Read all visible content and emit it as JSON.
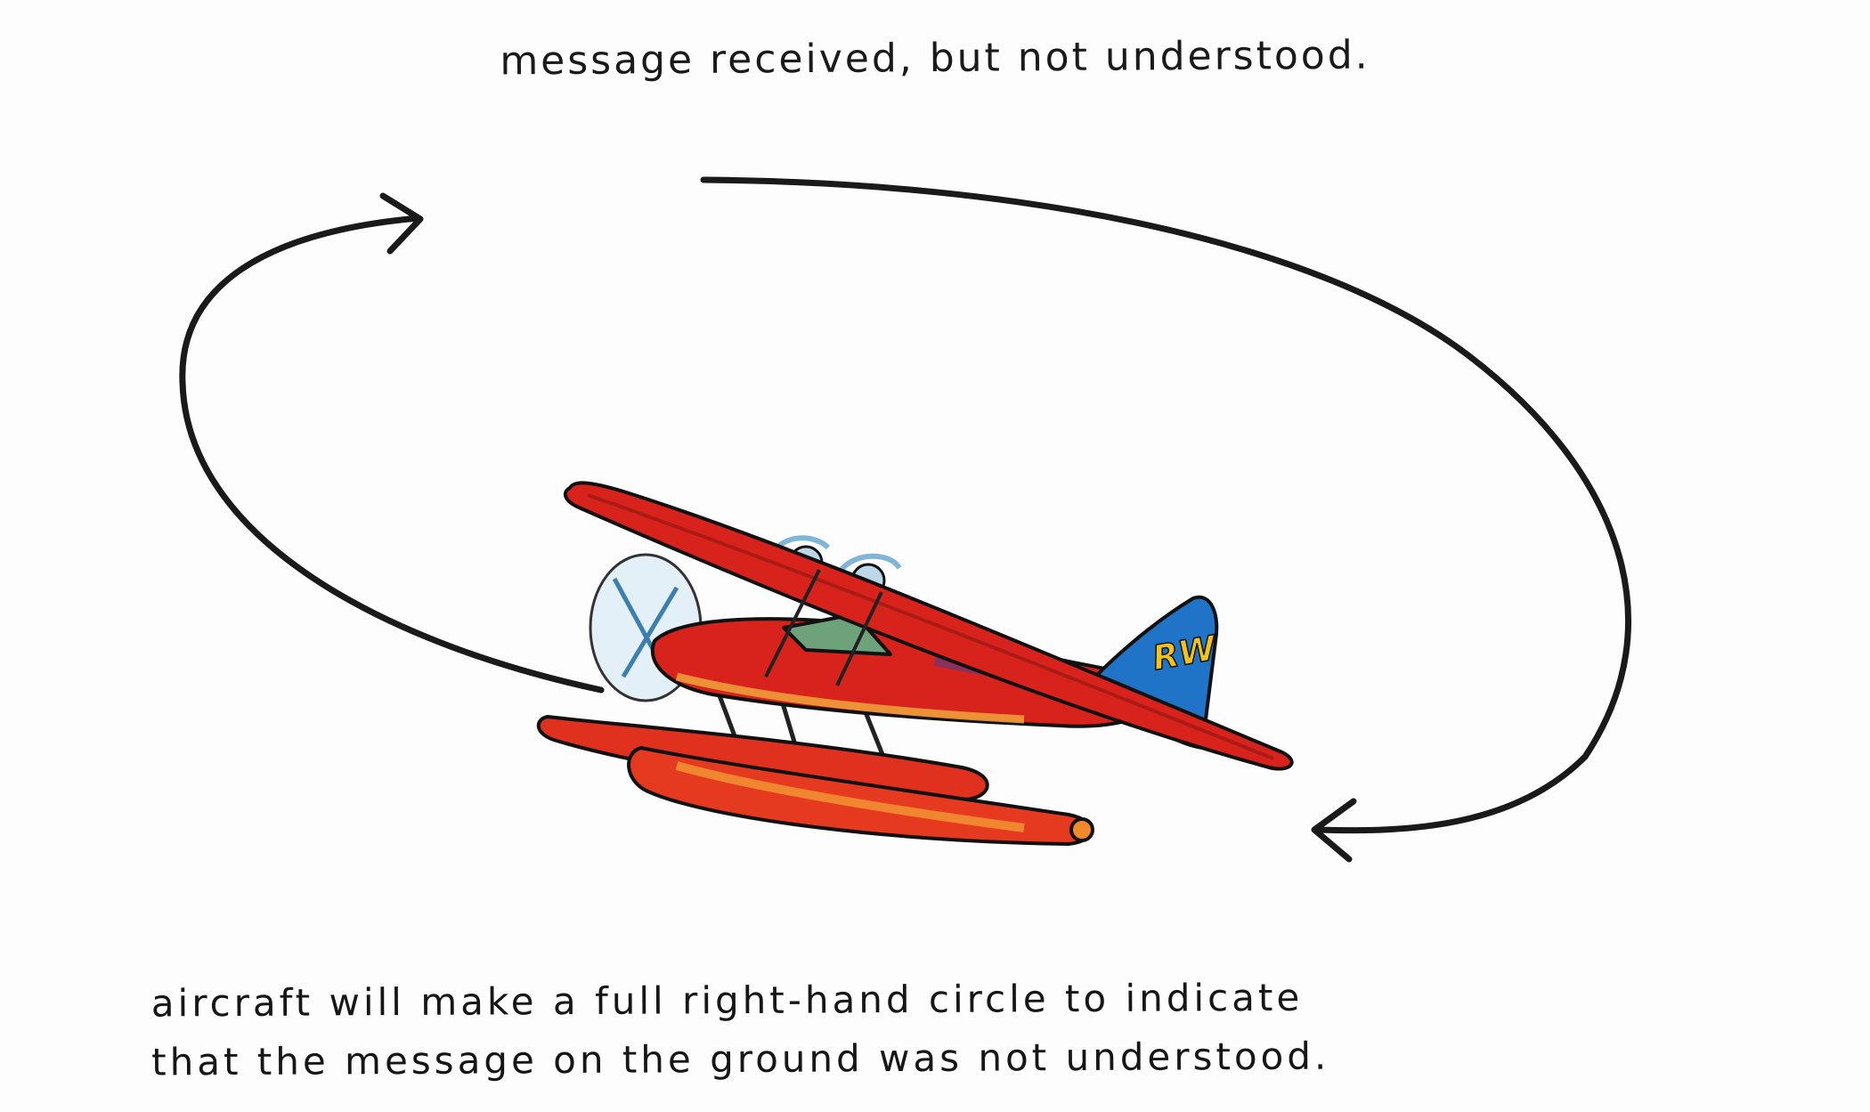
{
  "title": "message received, but not understood.",
  "caption": {
    "line1": "aircraft will make a full right-hand circle to indicate",
    "line2": "that the message on the ground was not understood."
  },
  "tail_marking": "RW",
  "colors": {
    "ink": "#1a1a1a",
    "fuselage_red": "#d8231c",
    "fuselage_dark": "#8e1512",
    "float_orange": "#f08a2a",
    "tail_blue": "#1f74c8",
    "marking_yellow": "#f4c21a",
    "prop_blue": "#7fb6d8"
  }
}
